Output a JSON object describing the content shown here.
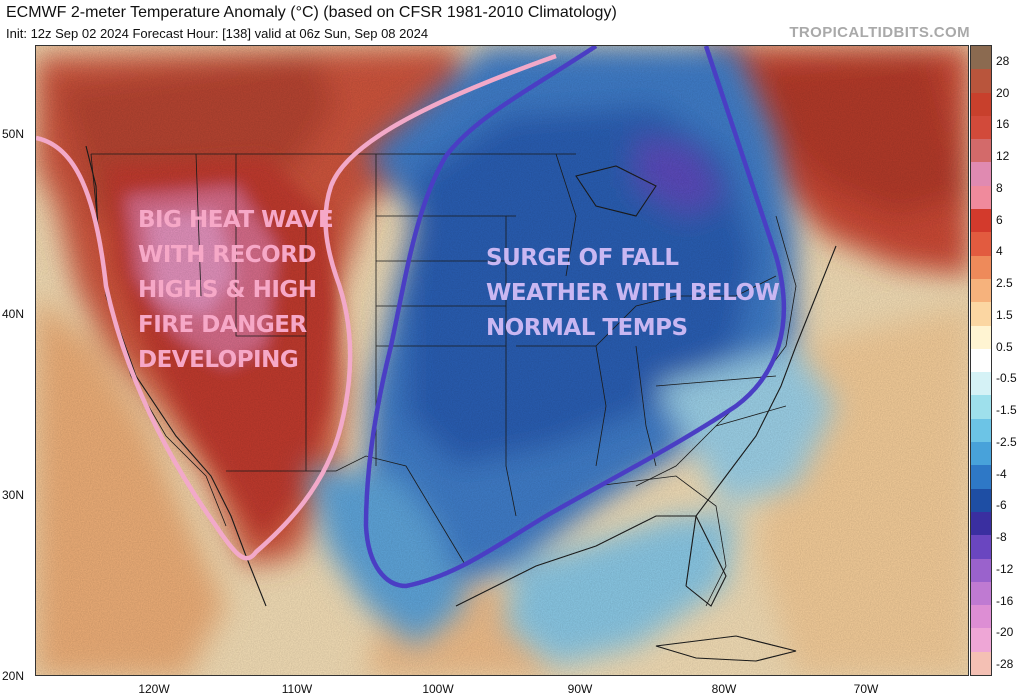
{
  "header": {
    "title": "ECMWF 2-meter Temperature Anomaly (°C) (based on CFSR 1981-2010 Climatology)",
    "subtitle": "Init: 12z Sep 02 2024   Forecast Hour: [138]   valid at 06z Sun, Sep 08 2024",
    "brand": "TROPICALTIDBITS.COM"
  },
  "axes": {
    "lat_labels": [
      "50N",
      "40N",
      "30N",
      "20N"
    ],
    "lon_labels": [
      "120W",
      "110W",
      "100W",
      "90W",
      "80W",
      "70W"
    ]
  },
  "colorbar": {
    "labels": [
      "28",
      "20",
      "16",
      "12",
      "8",
      "6",
      "4",
      "2.5",
      "1.5",
      "0.5",
      "-0.5",
      "-1.5",
      "-2.5",
      "-4",
      "-6",
      "-8",
      "-12",
      "-16",
      "-20",
      "-28"
    ],
    "colors": [
      "#8b6a50",
      "#b9553c",
      "#c8402c",
      "#d24a3a",
      "#d36a6a",
      "#e08ab1",
      "#f08a9c",
      "#d33a2c",
      "#e25b3f",
      "#ee8a5a",
      "#f6b27c",
      "#fbd6a2",
      "#fff4d2",
      "#ffffff",
      "#d5f2f6",
      "#9ee0ec",
      "#6cc4e6",
      "#48a2da",
      "#2e78c6",
      "#1e4ea4",
      "#3a2fa0",
      "#6a46c0",
      "#9a62cc",
      "#bf7ad2",
      "#dd8ed4",
      "#eea6d6",
      "#f4c0b4"
    ]
  },
  "annotations": {
    "heat_wave": "BIG HEAT WAVE\nWITH RECORD\nHIGHS & HIGH\nFIRE DANGER\nDEVELOPING",
    "fall_weather": "SURGE OF FALL\nWEATHER WITH BELOW\nNORMAL TEMPS"
  },
  "map": {
    "ocean_color": "#f5e2bd",
    "hot_color": "#c9402e",
    "cold_color": "#2f6bc8",
    "heat_outline_color": "#f2a9c9",
    "cold_outline_color": "#4a3ec4"
  }
}
